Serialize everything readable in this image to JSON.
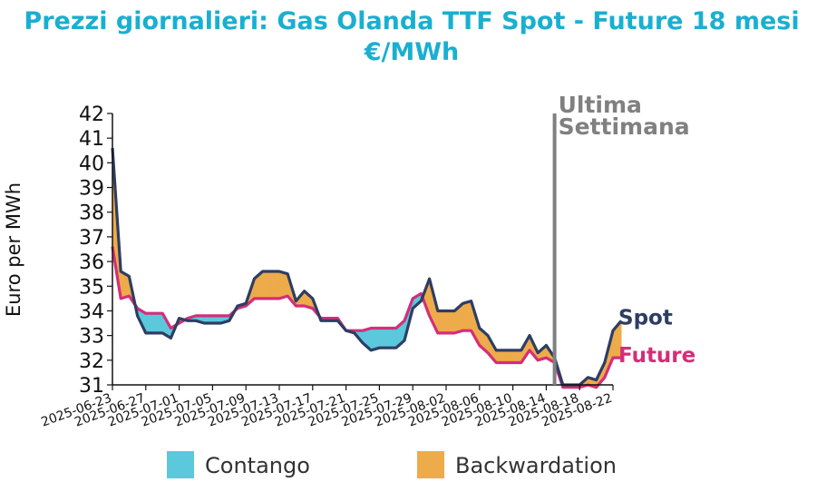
{
  "chart_data": {
    "type": "line",
    "title_line1": "Prezzi giornalieri: Gas Olanda TTF Spot - Future 18 mesi",
    "title_line2": "€/MWh",
    "ylabel": "Euro per MWh",
    "xlabel": "",
    "ylim": [
      31,
      42
    ],
    "yticks": [
      31,
      32,
      33,
      34,
      35,
      36,
      37,
      38,
      39,
      40,
      41,
      42
    ],
    "xlim": [
      "2025-06-23",
      "2025-08-22"
    ],
    "xticks": [
      "2025-06-23",
      "2025-06-27",
      "2025-07-01",
      "2025-07-05",
      "2025-07-09",
      "2025-07-13",
      "2025-07-17",
      "2025-07-21",
      "2025-07-25",
      "2025-07-29",
      "2025-08-02",
      "2025-08-06",
      "2025-08-10",
      "2025-08-14",
      "2025-08-18",
      "2025-08-22"
    ],
    "annotation": {
      "text_line1": "Ultima",
      "text_line2": "Settimana",
      "x": "2025-08-15"
    },
    "colors": {
      "title": "#1aafd0",
      "spot": "#2d3e63",
      "future": "#d42e78",
      "contango": "#5bc8dc",
      "backwardation": "#eeab4a",
      "annotation": "#808080"
    },
    "legend": {
      "position": "bottom",
      "contango": "Contango",
      "backwardation": "Backwardation"
    },
    "series": [
      {
        "name": "Spot",
        "points": [
          [
            "2025-06-23",
            40.6
          ],
          [
            "2025-06-24",
            35.6
          ],
          [
            "2025-06-25",
            35.4
          ],
          [
            "2025-06-26",
            33.8
          ],
          [
            "2025-06-27",
            33.1
          ],
          [
            "2025-06-28",
            33.1
          ],
          [
            "2025-06-29",
            33.1
          ],
          [
            "2025-06-30",
            32.9
          ],
          [
            "2025-07-01",
            33.7
          ],
          [
            "2025-07-02",
            33.6
          ],
          [
            "2025-07-03",
            33.6
          ],
          [
            "2025-07-04",
            33.5
          ],
          [
            "2025-07-05",
            33.5
          ],
          [
            "2025-07-06",
            33.5
          ],
          [
            "2025-07-07",
            33.6
          ],
          [
            "2025-07-08",
            34.2
          ],
          [
            "2025-07-09",
            34.3
          ],
          [
            "2025-07-10",
            35.3
          ],
          [
            "2025-07-11",
            35.6
          ],
          [
            "2025-07-12",
            35.6
          ],
          [
            "2025-07-13",
            35.6
          ],
          [
            "2025-07-14",
            35.5
          ],
          [
            "2025-07-15",
            34.4
          ],
          [
            "2025-07-16",
            34.8
          ],
          [
            "2025-07-17",
            34.5
          ],
          [
            "2025-07-18",
            33.6
          ],
          [
            "2025-07-19",
            33.6
          ],
          [
            "2025-07-20",
            33.6
          ],
          [
            "2025-07-21",
            33.2
          ],
          [
            "2025-07-22",
            33.1
          ],
          [
            "2025-07-23",
            32.7
          ],
          [
            "2025-07-24",
            32.4
          ],
          [
            "2025-07-25",
            32.5
          ],
          [
            "2025-07-26",
            32.5
          ],
          [
            "2025-07-27",
            32.5
          ],
          [
            "2025-07-28",
            32.8
          ],
          [
            "2025-07-29",
            34.1
          ],
          [
            "2025-07-30",
            34.4
          ],
          [
            "2025-07-31",
            35.3
          ],
          [
            "2025-08-01",
            34.0
          ],
          [
            "2025-08-02",
            34.0
          ],
          [
            "2025-08-03",
            34.0
          ],
          [
            "2025-08-04",
            34.3
          ],
          [
            "2025-08-05",
            34.4
          ],
          [
            "2025-08-06",
            33.3
          ],
          [
            "2025-08-07",
            33.0
          ],
          [
            "2025-08-08",
            32.4
          ],
          [
            "2025-08-09",
            32.4
          ],
          [
            "2025-08-10",
            32.4
          ],
          [
            "2025-08-11",
            32.4
          ],
          [
            "2025-08-12",
            33.0
          ],
          [
            "2025-08-13",
            32.3
          ],
          [
            "2025-08-14",
            32.6
          ],
          [
            "2025-08-15",
            32.1
          ],
          [
            "2025-08-16",
            31.0
          ],
          [
            "2025-08-17",
            31.0
          ],
          [
            "2025-08-18",
            31.0
          ],
          [
            "2025-08-19",
            31.3
          ],
          [
            "2025-08-20",
            31.2
          ],
          [
            "2025-08-21",
            31.9
          ],
          [
            "2025-08-22",
            33.2
          ],
          [
            "2025-08-23",
            33.6
          ]
        ]
      },
      {
        "name": "Future",
        "points": [
          [
            "2025-06-23",
            36.6
          ],
          [
            "2025-06-24",
            34.5
          ],
          [
            "2025-06-25",
            34.6
          ],
          [
            "2025-06-26",
            34.1
          ],
          [
            "2025-06-27",
            33.9
          ],
          [
            "2025-06-28",
            33.9
          ],
          [
            "2025-06-29",
            33.9
          ],
          [
            "2025-06-30",
            33.3
          ],
          [
            "2025-07-01",
            33.5
          ],
          [
            "2025-07-02",
            33.7
          ],
          [
            "2025-07-03",
            33.8
          ],
          [
            "2025-07-04",
            33.8
          ],
          [
            "2025-07-05",
            33.8
          ],
          [
            "2025-07-06",
            33.8
          ],
          [
            "2025-07-07",
            33.8
          ],
          [
            "2025-07-08",
            34.1
          ],
          [
            "2025-07-09",
            34.2
          ],
          [
            "2025-07-10",
            34.5
          ],
          [
            "2025-07-11",
            34.5
          ],
          [
            "2025-07-12",
            34.5
          ],
          [
            "2025-07-13",
            34.5
          ],
          [
            "2025-07-14",
            34.6
          ],
          [
            "2025-07-15",
            34.2
          ],
          [
            "2025-07-16",
            34.2
          ],
          [
            "2025-07-17",
            34.1
          ],
          [
            "2025-07-18",
            33.7
          ],
          [
            "2025-07-19",
            33.7
          ],
          [
            "2025-07-20",
            33.7
          ],
          [
            "2025-07-21",
            33.2
          ],
          [
            "2025-07-22",
            33.2
          ],
          [
            "2025-07-23",
            33.2
          ],
          [
            "2025-07-24",
            33.3
          ],
          [
            "2025-07-25",
            33.3
          ],
          [
            "2025-07-26",
            33.3
          ],
          [
            "2025-07-27",
            33.3
          ],
          [
            "2025-07-28",
            33.6
          ],
          [
            "2025-07-29",
            34.5
          ],
          [
            "2025-07-30",
            34.7
          ],
          [
            "2025-07-31",
            33.8
          ],
          [
            "2025-08-01",
            33.1
          ],
          [
            "2025-08-02",
            33.1
          ],
          [
            "2025-08-03",
            33.1
          ],
          [
            "2025-08-04",
            33.2
          ],
          [
            "2025-08-05",
            33.2
          ],
          [
            "2025-08-06",
            32.6
          ],
          [
            "2025-08-07",
            32.3
          ],
          [
            "2025-08-08",
            31.9
          ],
          [
            "2025-08-09",
            31.9
          ],
          [
            "2025-08-10",
            31.9
          ],
          [
            "2025-08-11",
            31.9
          ],
          [
            "2025-08-12",
            32.4
          ],
          [
            "2025-08-13",
            32.0
          ],
          [
            "2025-08-14",
            32.1
          ],
          [
            "2025-08-15",
            31.9
          ],
          [
            "2025-08-16",
            30.9
          ],
          [
            "2025-08-17",
            30.9
          ],
          [
            "2025-08-18",
            30.9
          ],
          [
            "2025-08-19",
            31.0
          ],
          [
            "2025-08-20",
            30.9
          ],
          [
            "2025-08-21",
            31.3
          ],
          [
            "2025-08-22",
            32.1
          ],
          [
            "2025-08-23",
            32.1
          ]
        ]
      }
    ]
  }
}
